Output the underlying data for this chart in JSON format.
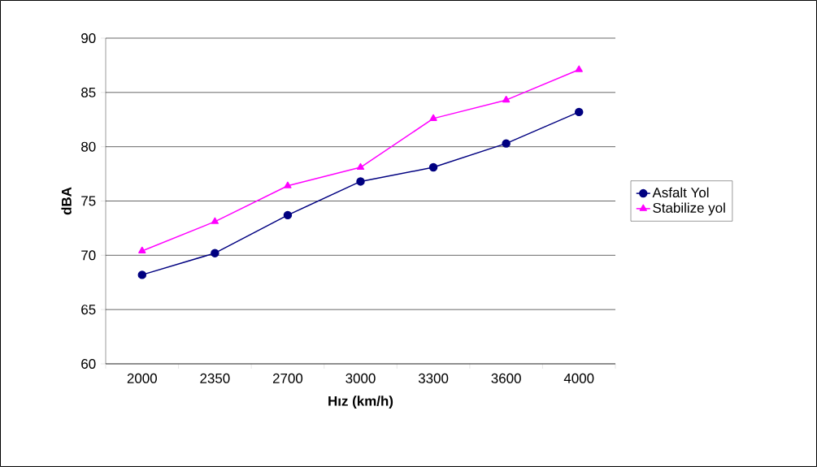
{
  "chart_data": {
    "type": "line",
    "xlabel": "Hız (km/h)",
    "ylabel": "dBA",
    "categories": [
      "2000",
      "2350",
      "2700",
      "3000",
      "3300",
      "3600",
      "4000"
    ],
    "series": [
      {
        "name": "Asfalt Yol",
        "color": "#000080",
        "marker": "circle",
        "values": [
          68.2,
          70.2,
          73.7,
          76.8,
          78.1,
          80.3,
          83.2
        ]
      },
      {
        "name": "Stabilize yol",
        "color": "#ff00ff",
        "marker": "triangle",
        "values": [
          70.4,
          73.1,
          76.4,
          78.1,
          82.6,
          84.3,
          87.1
        ]
      }
    ],
    "ylim": [
      60,
      90
    ],
    "yticks": [
      60,
      65,
      70,
      75,
      80,
      85,
      90
    ],
    "grid": "y",
    "legend": "right"
  }
}
